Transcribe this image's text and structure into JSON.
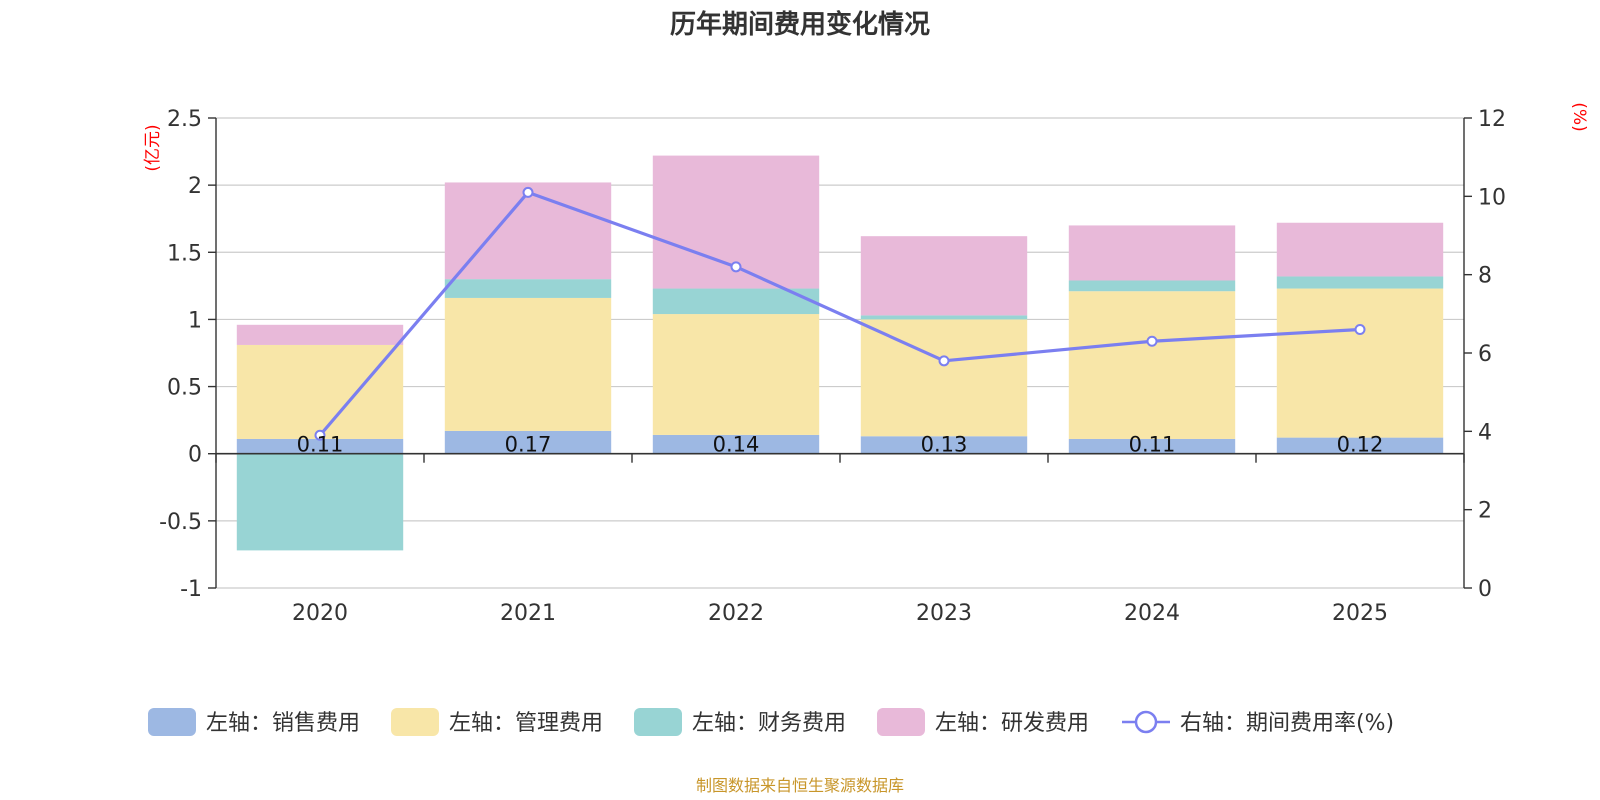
{
  "chart_data": {
    "type": "bar",
    "title": "历年期间费用变化情况",
    "categories": [
      "2020",
      "2021",
      "2022",
      "2023",
      "2024",
      "2025"
    ],
    "left_axis": {
      "unit_label": "(亿元)",
      "ylim": [
        -1,
        2.5
      ],
      "ticks": [
        -1,
        -0.5,
        0,
        0.5,
        1,
        1.5,
        2,
        2.5
      ],
      "tick_labels": [
        "-1",
        "-0.5",
        "0",
        "0.5",
        "1",
        "1.5",
        "2",
        "2.5"
      ]
    },
    "right_axis": {
      "unit_label": "(%)",
      "ylim": [
        0,
        12
      ],
      "ticks": [
        0,
        2,
        4,
        6,
        8,
        10,
        12
      ],
      "tick_labels": [
        "0",
        "2",
        "4",
        "6",
        "8",
        "10",
        "12"
      ]
    },
    "series": [
      {
        "name": "左轴：销售费用",
        "kind": "bar",
        "axis": "left",
        "color": "#9db8e3",
        "values": [
          0.11,
          0.17,
          0.14,
          0.13,
          0.11,
          0.12
        ],
        "labels": [
          "0.11",
          "0.17",
          "0.14",
          "0.13",
          "0.11",
          "0.12"
        ]
      },
      {
        "name": "左轴：管理费用",
        "kind": "bar",
        "axis": "left",
        "color": "#f8e6a8",
        "values": [
          0.7,
          0.99,
          0.9,
          0.87,
          1.1,
          1.11
        ]
      },
      {
        "name": "左轴：财务费用",
        "kind": "bar",
        "axis": "left",
        "color": "#98d4d4",
        "values": [
          -0.72,
          0.14,
          0.19,
          0.03,
          0.08,
          0.09
        ]
      },
      {
        "name": "左轴：研发费用",
        "kind": "bar",
        "axis": "left",
        "color": "#e8b9d9",
        "values": [
          0.15,
          0.72,
          0.99,
          0.59,
          0.41,
          0.4
        ]
      },
      {
        "name": "右轴：期间费用率(%)",
        "kind": "line",
        "axis": "right",
        "color": "#7b7ff0",
        "values": [
          3.9,
          10.1,
          8.2,
          5.8,
          6.3,
          6.6
        ]
      }
    ],
    "legend_position": "bottom",
    "grid": true,
    "source": "制图数据来自恒生聚源数据库"
  }
}
